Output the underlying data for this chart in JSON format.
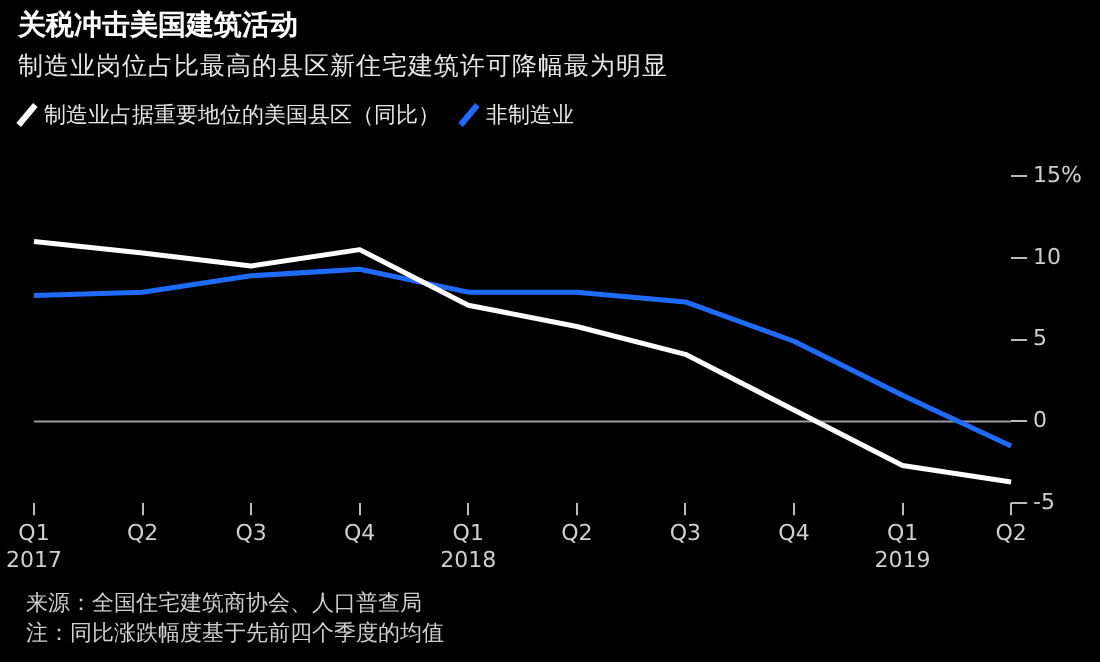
{
  "chart_data": {
    "type": "line",
    "title": "关税冲击美国建筑活动",
    "subtitle": "制造业岗位占比最高的县区新住宅建筑许可降幅最为明显",
    "categories": [
      "Q1\n2017",
      "Q2",
      "Q3",
      "Q4",
      "Q1\n2018",
      "Q2",
      "Q3",
      "Q4",
      "Q1\n2019",
      "Q2"
    ],
    "series": [
      {
        "name": "制造业占据重要地位的美国县区（同比）",
        "color": "#ffffff",
        "values": [
          11.0,
          10.3,
          9.5,
          10.5,
          7.1,
          5.8,
          4.1,
          0.7,
          -2.7,
          -3.7
        ]
      },
      {
        "name": "非制造业",
        "color": "#1f6bff",
        "values": [
          7.7,
          7.9,
          8.9,
          9.3,
          7.9,
          7.9,
          7.3,
          4.9,
          1.6,
          -1.5
        ]
      }
    ],
    "ylim": [
      -5,
      15
    ],
    "yticks": [
      {
        "value": 15,
        "label": "15%"
      },
      10,
      5,
      0,
      -5
    ],
    "ref_lines": [
      {
        "axis": "y",
        "value": 0,
        "color": "#9a9a9a"
      }
    ],
    "grid": false,
    "legend": "top left",
    "marker": "none",
    "annotations": [
      "来源：全国住宅建筑商协会、人口普查局",
      "注：同比涨跌幅度基于先前四个季度的均值"
    ]
  }
}
